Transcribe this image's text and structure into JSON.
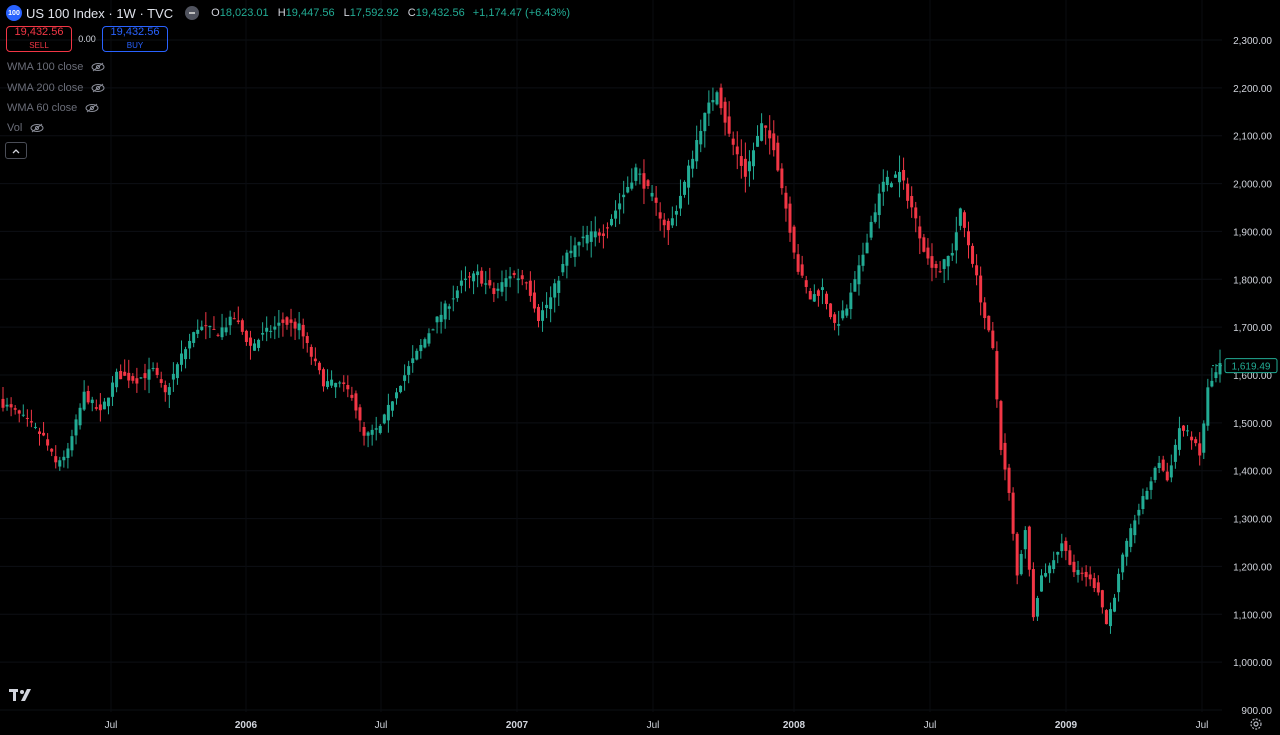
{
  "header": {
    "symbol_badge": "100",
    "title": "US 100 Index · 1W · TVC",
    "ohlc": {
      "o_label": "O",
      "o": "18,023.01",
      "h_label": "H",
      "h": "19,447.56",
      "l_label": "L",
      "l": "17,592.92",
      "c_label": "C",
      "c": "19,432.56",
      "change": "+1,174.47 (+6.43%)"
    }
  },
  "trade": {
    "sell_price": "19,432.56",
    "sell_label": "SELL",
    "spread": "0.00",
    "buy_price": "19,432.56",
    "buy_label": "BUY"
  },
  "indicators": [
    {
      "label": "WMA 100 close",
      "icon": "eye-hidden-icon"
    },
    {
      "label": "WMA 200 close",
      "icon": "eye-hidden-icon"
    },
    {
      "label": "WMA 60 close",
      "icon": "eye-hidden-icon"
    },
    {
      "label": "Vol",
      "icon": "eye-hidden-icon"
    }
  ],
  "colors": {
    "up": "#22ab94",
    "down": "#f23645",
    "background": "#000000",
    "axis_text": "#d1d4dc",
    "buy": "#2962ff",
    "sell": "#f23645"
  },
  "chart_data": {
    "type": "candlestick",
    "title": "US 100 Index · 1W · TVC",
    "price_axis": {
      "ticks": [
        "2,300.00",
        "2,200.00",
        "2,100.00",
        "2,000.00",
        "1,900.00",
        "1,800.00",
        "1,700.00",
        "1,600.00",
        "1,500.00",
        "1,400.00",
        "1,300.00",
        "1,200.00",
        "1,100.00",
        "1,000.00",
        "900.00"
      ],
      "range": [
        900,
        2330
      ]
    },
    "time_axis": {
      "labels": [
        "Jul",
        "2006",
        "Jul",
        "2007",
        "Jul",
        "2008",
        "Jul",
        "2009",
        "Jul"
      ]
    },
    "last_price_label": "1,619.49",
    "last_price": 1619.49,
    "anchors": [
      [
        0,
        1540
      ],
      [
        5,
        1510
      ],
      [
        10,
        1470
      ],
      [
        13,
        1415
      ],
      [
        16,
        1440
      ],
      [
        20,
        1560
      ],
      [
        24,
        1520
      ],
      [
        28,
        1600
      ],
      [
        33,
        1590
      ],
      [
        37,
        1610
      ],
      [
        40,
        1560
      ],
      [
        44,
        1640
      ],
      [
        48,
        1700
      ],
      [
        53,
        1690
      ],
      [
        57,
        1720
      ],
      [
        61,
        1660
      ],
      [
        65,
        1690
      ],
      [
        69,
        1710
      ],
      [
        73,
        1700
      ],
      [
        76,
        1640
      ],
      [
        79,
        1585
      ],
      [
        83,
        1580
      ],
      [
        86,
        1560
      ],
      [
        89,
        1470
      ],
      [
        93,
        1490
      ],
      [
        97,
        1570
      ],
      [
        101,
        1630
      ],
      [
        105,
        1690
      ],
      [
        109,
        1740
      ],
      [
        113,
        1790
      ],
      [
        117,
        1810
      ],
      [
        121,
        1770
      ],
      [
        125,
        1810
      ],
      [
        129,
        1800
      ],
      [
        132,
        1720
      ],
      [
        135,
        1760
      ],
      [
        139,
        1850
      ],
      [
        144,
        1890
      ],
      [
        148,
        1900
      ],
      [
        152,
        1960
      ],
      [
        156,
        2030
      ],
      [
        160,
        1970
      ],
      [
        164,
        1900
      ],
      [
        168,
        2000
      ],
      [
        172,
        2120
      ],
      [
        176,
        2200
      ],
      [
        179,
        2100
      ],
      [
        183,
        2020
      ],
      [
        187,
        2120
      ],
      [
        190,
        2080
      ],
      [
        193,
        1950
      ],
      [
        196,
        1820
      ],
      [
        199,
        1760
      ],
      [
        202,
        1780
      ],
      [
        205,
        1700
      ],
      [
        208,
        1740
      ],
      [
        211,
        1820
      ],
      [
        214,
        1920
      ],
      [
        217,
        2000
      ],
      [
        221,
        2020
      ],
      [
        224,
        1950
      ],
      [
        228,
        1840
      ],
      [
        231,
        1820
      ],
      [
        234,
        1860
      ],
      [
        236,
        1940
      ],
      [
        239,
        1840
      ],
      [
        242,
        1720
      ],
      [
        244,
        1650
      ],
      [
        246,
        1450
      ],
      [
        248,
        1350
      ],
      [
        250,
        1180
      ],
      [
        252,
        1280
      ],
      [
        254,
        1100
      ],
      [
        256,
        1180
      ],
      [
        258,
        1200
      ],
      [
        261,
        1250
      ],
      [
        264,
        1190
      ],
      [
        267,
        1180
      ],
      [
        270,
        1150
      ],
      [
        272,
        1080
      ],
      [
        274,
        1140
      ],
      [
        276,
        1220
      ],
      [
        279,
        1300
      ],
      [
        282,
        1360
      ],
      [
        285,
        1420
      ],
      [
        287,
        1380
      ],
      [
        290,
        1490
      ],
      [
        293,
        1470
      ],
      [
        295,
        1430
      ],
      [
        297,
        1570
      ],
      [
        300,
        1619.49
      ]
    ],
    "candles_count": 301
  }
}
